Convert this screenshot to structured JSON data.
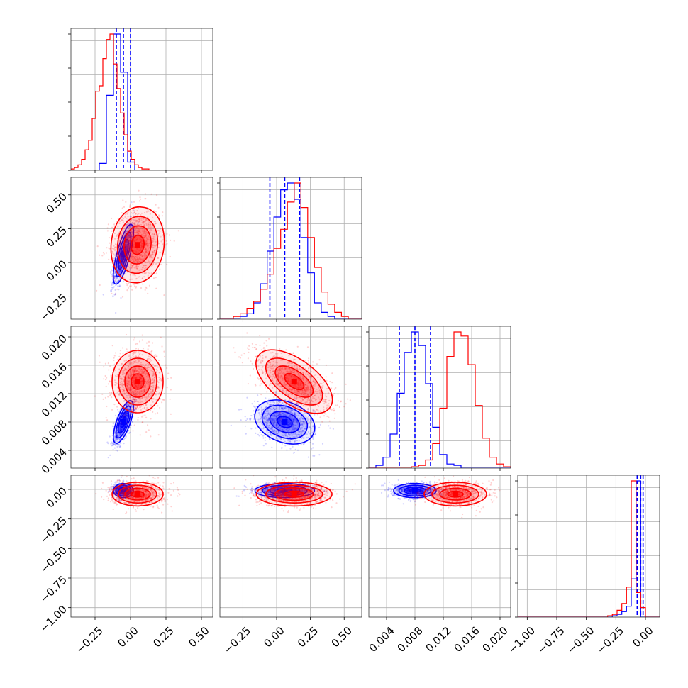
{
  "chart_data": {
    "type": "corner",
    "grid": true,
    "colors": {
      "series_a": "#0000ff",
      "series_b": "#ff0000"
    },
    "parameters": [
      {
        "ticks": [
          -0.25,
          0.0,
          0.25,
          0.5
        ],
        "tick_labels": [
          "−0.25",
          "0.00",
          "0.25",
          "0.50"
        ],
        "range": [
          -0.42,
          0.58
        ]
      },
      {
        "ticks": [
          -0.25,
          0.0,
          0.25,
          0.5
        ],
        "tick_labels": [
          "−0.25",
          "0.00",
          "0.25",
          "0.50"
        ],
        "range": [
          -0.42,
          0.63
        ]
      },
      {
        "ticks": [
          0.004,
          0.008,
          0.012,
          0.016,
          0.02
        ],
        "tick_labels": [
          "0.004",
          "0.008",
          "0.012",
          "0.016",
          "0.020"
        ],
        "range": [
          0.0015,
          0.0215
        ]
      },
      {
        "ticks": [
          -1.0,
          -0.75,
          -0.5,
          -0.25,
          0.0
        ],
        "tick_labels": [
          "−1.00",
          "−0.75",
          "−0.50",
          "−0.25",
          "0.00"
        ],
        "range": [
          -1.08,
          0.12
        ]
      }
    ],
    "series": [
      {
        "color": "#0000ff",
        "means": [
          -0.05,
          0.06,
          0.008,
          -0.01
        ],
        "quantiles": [
          [
            -0.1,
            -0.05,
            0.0
          ],
          [
            -0.05,
            0.06,
            0.17
          ],
          [
            0.0058,
            0.008,
            0.0102
          ],
          [
            -0.07,
            -0.04,
            -0.02
          ]
        ],
        "sd": [
          0.035,
          0.11,
          0.0015,
          0.03
        ],
        "correlations": {
          "0-1": 0.75,
          "0-2": 0.7,
          "1-2": -0.3,
          "0-3": 0.0,
          "1-3": 0.0,
          "2-3": 0.0
        },
        "histograms": [
          {
            "start": -0.42,
            "width": 0.05,
            "heights": [
              0,
              0,
              0,
              0,
              0.05,
              0.55,
              1.0,
              0.72,
              0.06,
              0,
              0,
              0,
              0,
              0,
              0,
              0,
              0,
              0,
              0,
              0
            ]
          },
          {
            "start": -0.42,
            "width": 0.05,
            "heights": [
              0,
              0,
              0,
              0.02,
              0.04,
              0.12,
              0.26,
              0.5,
              0.75,
              0.95,
              1.0,
              0.88,
              0.6,
              0.34,
              0.12,
              0.05,
              0.02,
              0,
              0,
              0,
              0
            ]
          },
          {
            "start": 0.0015,
            "width": 0.001,
            "heights": [
              0,
              0.02,
              0.08,
              0.25,
              0.55,
              0.85,
              1.0,
              0.9,
              0.62,
              0.3,
              0.1,
              0.03,
              0.02,
              0,
              0,
              0,
              0,
              0,
              0,
              0
            ]
          },
          {
            "start": -1.08,
            "width": 0.04,
            "heights": [
              0,
              0,
              0,
              0,
              0,
              0,
              0,
              0,
              0,
              0,
              0,
              0,
              0,
              0,
              0,
              0,
              0,
              0,
              0,
              0,
              0.01,
              0.02,
              0.04,
              0.08,
              0.28,
              1.0,
              0,
              0,
              0,
              0
            ]
          }
        ]
      },
      {
        "color": "#ff0000",
        "means": [
          0.05,
          0.13,
          0.0137,
          -0.04
        ],
        "quantiles": [],
        "sd": [
          0.09,
          0.14,
          0.0022,
          0.05
        ],
        "correlations": {
          "0-1": 0.1,
          "0-2": 0.0,
          "1-2": -0.6,
          "0-3": 0.0,
          "1-3": 0.0,
          "2-3": 0.0
        },
        "histograms": [
          {
            "start": -0.42,
            "width": 0.025,
            "heights": [
              0.01,
              0.02,
              0.04,
              0.08,
              0.15,
              0.22,
              0.38,
              0.58,
              0.62,
              0.82,
              0.96,
              1.0,
              0.78,
              0.6,
              0.42,
              0.26,
              0.14,
              0.08,
              0.04,
              0.02,
              0.01,
              0.01,
              0,
              0,
              0,
              0,
              0,
              0,
              0,
              0,
              0,
              0,
              0,
              0,
              0,
              0,
              0,
              0,
              0,
              0
            ]
          },
          {
            "start": -0.42,
            "width": 0.05,
            "heights": [
              0,
              0,
              0.02,
              0.04,
              0.08,
              0.13,
              0.22,
              0.33,
              0.52,
              0.66,
              0.86,
              1.0,
              0.82,
              0.6,
              0.38,
              0.2,
              0.11,
              0.05,
              0.02,
              0,
              0
            ]
          },
          {
            "start": 0.0015,
            "width": 0.001,
            "heights": [
              0,
              0,
              0,
              0,
              0,
              0,
              0.01,
              0.02,
              0.06,
              0.18,
              0.44,
              0.82,
              1.0,
              0.97,
              0.76,
              0.46,
              0.22,
              0.08,
              0.03,
              0.01
            ]
          },
          {
            "start": -1.08,
            "width": 0.04,
            "heights": [
              0,
              0,
              0,
              0,
              0,
              0,
              0,
              0,
              0,
              0,
              0,
              0,
              0,
              0,
              0,
              0,
              0,
              0,
              0,
              0.01,
              0.02,
              0.05,
              0.1,
              0.22,
              1.0,
              0.18,
              0.07,
              0,
              0,
              0
            ]
          }
        ]
      }
    ]
  }
}
